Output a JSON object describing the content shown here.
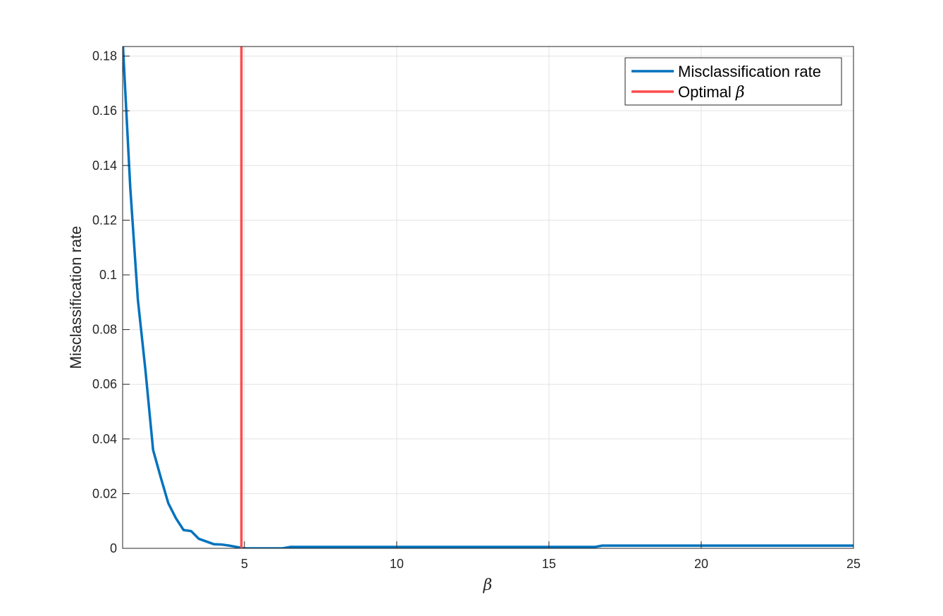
{
  "chart_data": {
    "type": "line",
    "title": "",
    "xlabel": "β",
    "ylabel": "Misclassification rate",
    "xlim": [
      1,
      25
    ],
    "ylim": [
      0,
      0.1835
    ],
    "grid": true,
    "x_ticks": [
      5,
      10,
      15,
      20,
      25
    ],
    "x_tick_labels": [
      "5",
      "10",
      "15",
      "20",
      "25"
    ],
    "y_ticks": [
      0,
      0.02,
      0.04,
      0.06,
      0.08,
      0.1,
      0.12,
      0.14,
      0.16,
      0.18
    ],
    "y_tick_labels": [
      "0",
      "0.02",
      "0.04",
      "0.06",
      "0.08",
      "0.1",
      "0.12",
      "0.14",
      "0.16",
      "0.18"
    ],
    "legend_position": "top-right",
    "series": [
      {
        "name": "Misclassification rate",
        "color": "#0072BD",
        "x": [
          1.0,
          1.25,
          1.5,
          1.75,
          2.0,
          2.25,
          2.5,
          2.75,
          3.0,
          3.25,
          3.5,
          3.75,
          4.0,
          4.25,
          4.5,
          4.75,
          5.0,
          5.25,
          5.5,
          5.75,
          6.0,
          6.25,
          6.5,
          7.0,
          8.0,
          10.0,
          12.0,
          14.0,
          16.0,
          16.25,
          16.5,
          16.75,
          18.0,
          20.0,
          22.0,
          24.0,
          25.0
        ],
        "values": [
          0.186,
          0.132,
          0.091,
          0.065,
          0.036,
          0.026,
          0.0165,
          0.011,
          0.0067,
          0.0063,
          0.0035,
          0.0025,
          0.0015,
          0.0014,
          0.001,
          0.0005,
          0.0,
          0.0,
          0.0,
          0.0,
          0.0,
          0.0,
          0.0005,
          0.0005,
          0.0005,
          0.0005,
          0.0005,
          0.0005,
          0.0005,
          0.0005,
          0.0005,
          0.001,
          0.001,
          0.001,
          0.001,
          0.001,
          0.001
        ]
      }
    ],
    "reference_lines": [
      {
        "name": "Optimal ",
        "symbol": "β",
        "orientation": "vertical",
        "x": 4.9,
        "color": "#FF4D4D"
      }
    ]
  }
}
